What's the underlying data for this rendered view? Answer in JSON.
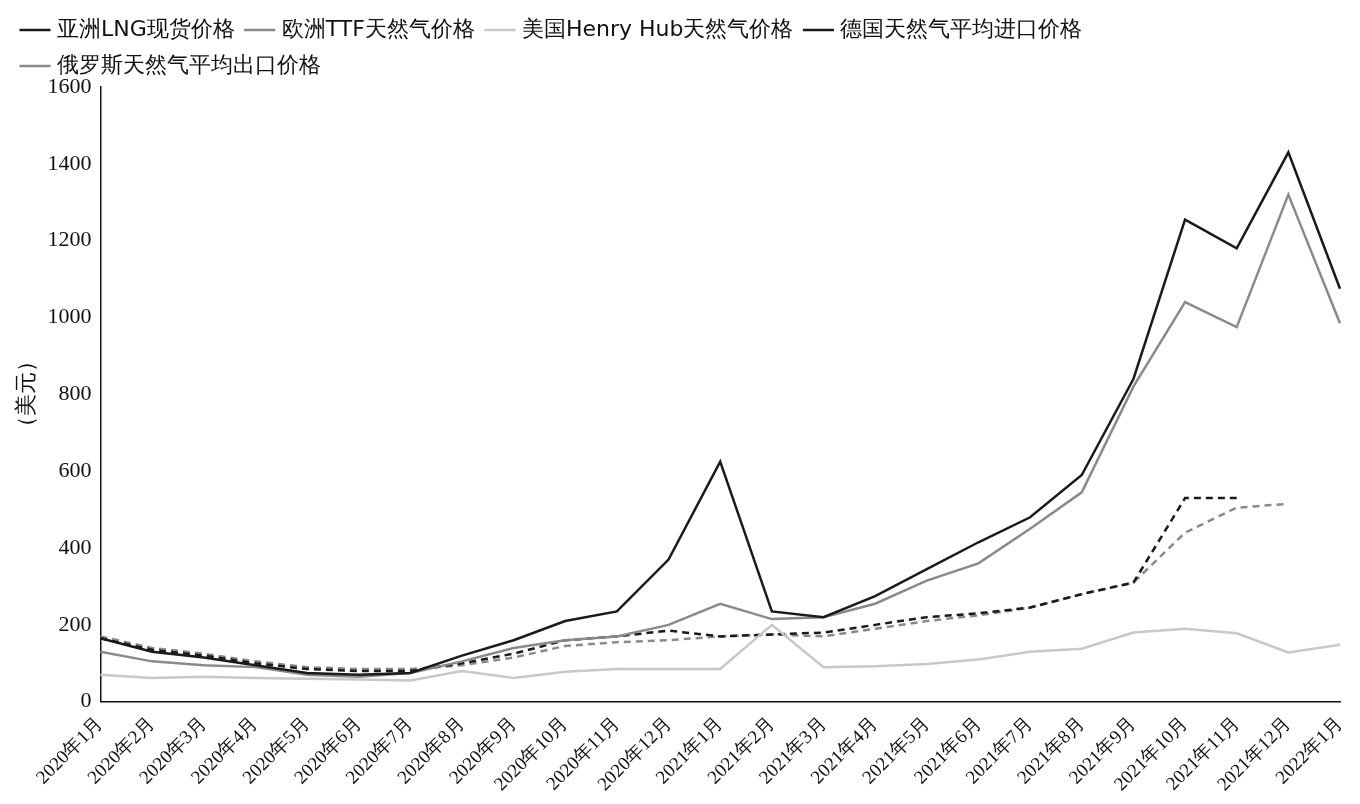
{
  "chart_data": {
    "type": "line",
    "y_label": "（美元）",
    "categories": [
      "2020年1月",
      "2020年2月",
      "2020年3月",
      "2020年4月",
      "2020年5月",
      "2020年6月",
      "2020年7月",
      "2020年8月",
      "2020年9月",
      "2020年10月",
      "2020年11月",
      "2020年12月",
      "2021年1月",
      "2021年2月",
      "2021年3月",
      "2021年4月",
      "2021年5月",
      "2021年6月",
      "2021年7月",
      "2021年8月",
      "2021年9月",
      "2021年10月",
      "2021年11月",
      "2021年12月",
      "2022年1月"
    ],
    "series": [
      {
        "name": "亚洲LNG现货价格",
        "color": "#1a1a1a",
        "line_style": "solid",
        "values": [
          165,
          130,
          115,
          95,
          75,
          70,
          75,
          120,
          160,
          210,
          235,
          370,
          625,
          235,
          220,
          275,
          345,
          415,
          480,
          590,
          840,
          1255,
          1180,
          1430,
          1075
        ]
      },
      {
        "name": "欧洲TTF天然气价格",
        "color": "#8a8a8a",
        "line_style": "solid",
        "values": [
          130,
          105,
          95,
          90,
          70,
          65,
          75,
          105,
          140,
          160,
          170,
          200,
          255,
          215,
          220,
          255,
          315,
          360,
          450,
          545,
          820,
          1040,
          975,
          1320,
          985
        ]
      },
      {
        "name": "美国Henry Hub天然气价格",
        "color": "#c8c8c8",
        "line_style": "solid",
        "values": [
          70,
          62,
          65,
          62,
          60,
          58,
          55,
          80,
          62,
          78,
          85,
          85,
          85,
          200,
          90,
          92,
          98,
          110,
          130,
          138,
          180,
          190,
          178,
          128,
          148
        ]
      },
      {
        "name": "德国天然气平均进口价格",
        "color": "#1a1a1a",
        "line_style": "dashed",
        "values": [
          165,
          135,
          120,
          100,
          85,
          80,
          80,
          100,
          125,
          160,
          170,
          185,
          170,
          175,
          180,
          200,
          220,
          230,
          245,
          280,
          310,
          530,
          530,
          null,
          null
        ]
      },
      {
        "name": "俄罗斯天然气平均出口价格",
        "color": "#8a8a8a",
        "line_style": "dashed",
        "values": [
          170,
          140,
          125,
          105,
          90,
          85,
          85,
          95,
          115,
          145,
          155,
          160,
          170,
          175,
          170,
          190,
          210,
          225,
          245,
          280,
          310,
          440,
          505,
          515,
          null
        ]
      }
    ],
    "ylim": [
      0,
      1600
    ],
    "yticks": [
      0,
      200,
      400,
      600,
      800,
      1000,
      1200,
      1400,
      1600
    ],
    "grid": false,
    "legend": "top"
  }
}
